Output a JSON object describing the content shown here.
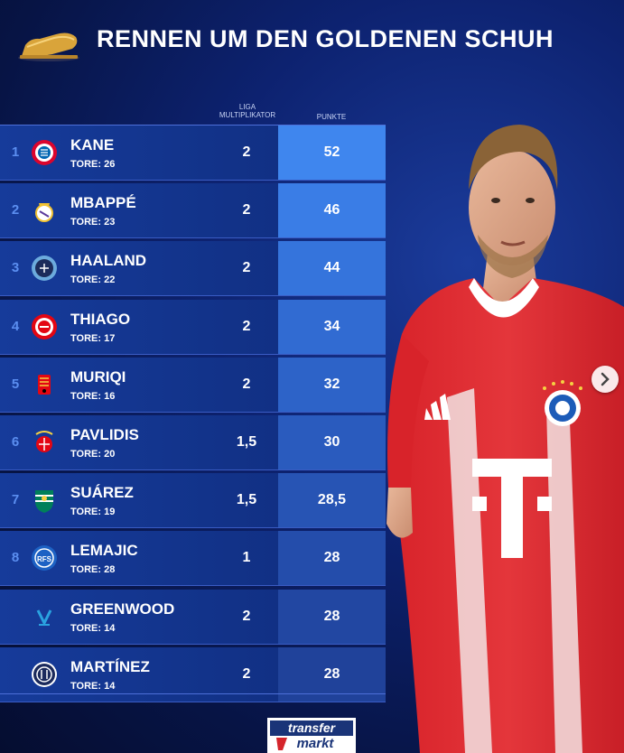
{
  "title": "RENNEN UM DEN GOLDENEN SCHUH",
  "columns": {
    "multiplier": "LIGA MULTIPLIKATOR",
    "points": "PUNKTE"
  },
  "rows": [
    {
      "rank": "1",
      "name": "KANE",
      "goals": "TORE: 26",
      "mult": "2",
      "points": "52",
      "crest": "bayern-crest-icon",
      "pts_color": "#3f86ee"
    },
    {
      "rank": "2",
      "name": "MBAPPÉ",
      "goals": "TORE: 23",
      "mult": "2",
      "points": "46",
      "crest": "real-madrid-crest-icon",
      "pts_color": "#3a7de6"
    },
    {
      "rank": "3",
      "name": "HAALAND",
      "goals": "TORE: 22",
      "mult": "2",
      "points": "44",
      "crest": "man-city-crest-icon",
      "pts_color": "#3574dc"
    },
    {
      "rank": "4",
      "name": "THIAGO",
      "goals": "TORE: 17",
      "mult": "2",
      "points": "34",
      "crest": "brentford-crest-icon",
      "pts_color": "#316bd2"
    },
    {
      "rank": "5",
      "name": "MURIQI",
      "goals": "TORE: 16",
      "mult": "2",
      "points": "32",
      "crest": "mallorca-crest-icon",
      "pts_color": "#2d63c8"
    },
    {
      "rank": "6",
      "name": "PAVLIDIS",
      "goals": "TORE: 20",
      "mult": "1,5",
      "points": "30",
      "crest": "benfica-crest-icon",
      "pts_color": "#2a5bbe"
    },
    {
      "rank": "7",
      "name": "SUÁREZ",
      "goals": "TORE: 19",
      "mult": "1,5",
      "points": "28,5",
      "crest": "sporting-crest-icon",
      "pts_color": "#2754b4"
    },
    {
      "rank": "8",
      "name": "LEMAJIC",
      "goals": "TORE: 28",
      "mult": "1",
      "points": "28",
      "crest": "rfs-crest-icon",
      "pts_color": "#244dab"
    },
    {
      "rank": "",
      "name": "GREENWOOD",
      "goals": "TORE: 14",
      "mult": "2",
      "points": "28",
      "crest": "marseille-crest-icon",
      "pts_color": "#2247a2"
    },
    {
      "rank": "",
      "name": "MARTÍNEZ",
      "goals": "TORE: 14",
      "mult": "2",
      "points": "28",
      "crest": "inter-crest-icon",
      "pts_color": "#20429a"
    }
  ],
  "logo": {
    "line1": "transfer",
    "line2": "markt"
  },
  "colors": {
    "rank": "#5b8ef0",
    "background": "#0d2270"
  }
}
